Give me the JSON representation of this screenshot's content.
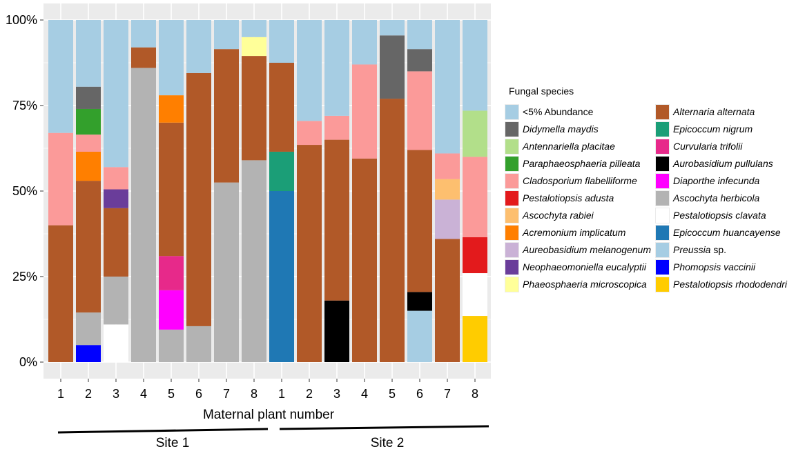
{
  "chart_data": {
    "type": "bar",
    "stacked": true,
    "xlabel": "Maternal plant number",
    "ylabel": "",
    "ylim": [
      0,
      100
    ],
    "yticks": [
      "0%",
      "25%",
      "50%",
      "75%",
      "100%"
    ],
    "ytick_values": [
      0,
      25,
      50,
      75,
      100
    ],
    "groups": [
      {
        "name": "Site 1",
        "categories": [
          "1",
          "2",
          "3",
          "4",
          "5",
          "6",
          "7",
          "8"
        ]
      },
      {
        "name": "Site 2",
        "categories": [
          "1",
          "2",
          "3",
          "4",
          "5",
          "6",
          "7",
          "8"
        ]
      }
    ],
    "legend_title": "Fungal species",
    "legend_placement": "right",
    "species": [
      {
        "key": "abund",
        "name": "<5% Abundance",
        "italic": false,
        "color": "#a6cde3"
      },
      {
        "key": "didy",
        "name": "Didymella maydis",
        "italic": true,
        "color": "#666666"
      },
      {
        "key": "anten",
        "name": "Antennariella placitae",
        "italic": true,
        "color": "#b2df8a"
      },
      {
        "key": "parap",
        "name": "Paraphaeosphaeria pilleata",
        "italic": true,
        "color": "#33a02c"
      },
      {
        "key": "clado",
        "name": "Cladosporium flabelliforme",
        "italic": true,
        "color": "#fb9a99"
      },
      {
        "key": "pestad",
        "name": "Pestalotiopsis adusta",
        "italic": true,
        "color": "#e31a1c"
      },
      {
        "key": "ascrab",
        "name": "Ascochyta rabiei",
        "italic": true,
        "color": "#fdbf6f"
      },
      {
        "key": "acrem",
        "name": "Acremonium implicatum",
        "italic": true,
        "color": "#ff7f00"
      },
      {
        "key": "aureo",
        "name": "Aureobasidium melanogenum",
        "italic": true,
        "color": "#cab2d6"
      },
      {
        "key": "neoph",
        "name": "Neophaeomoniella eucalyptii",
        "italic": true,
        "color": "#6a3d9a"
      },
      {
        "key": "phaeo",
        "name": "Phaeosphaeria microscopica",
        "italic": true,
        "color": "#ffff99"
      },
      {
        "key": "alter",
        "name": "Alternaria alternata",
        "italic": true,
        "color": "#b15928"
      },
      {
        "key": "epini",
        "name": "Epicoccum nigrum",
        "italic": true,
        "color": "#1b9e77"
      },
      {
        "key": "curv",
        "name": "Curvularia trifolii",
        "italic": true,
        "color": "#e7298a"
      },
      {
        "key": "aurpul",
        "name": "Aurobasidium pullulans",
        "italic": true,
        "color": "#000000"
      },
      {
        "key": "diap",
        "name": "Diaporthe infecunda",
        "italic": true,
        "color": "#ff00ff"
      },
      {
        "key": "aschb",
        "name": "Ascochyta herbicola",
        "italic": true,
        "color": "#b3b3b3"
      },
      {
        "key": "pestcl",
        "name": "Pestalotiopsis clavata",
        "italic": true,
        "color": "#ffffff"
      },
      {
        "key": "epihu",
        "name": "Epicoccum huancayense",
        "italic": true,
        "color": "#1f78b4"
      },
      {
        "key": "preus",
        "name": "Preussia sp.",
        "italic": false,
        "color": "#a6cde3"
      },
      {
        "key": "phomo",
        "name": "Phomopsis vaccinii",
        "italic": true,
        "color": "#0000ff"
      },
      {
        "key": "pestrh",
        "name": "Pestalotiopsis rhododendri",
        "italic": true,
        "color": "#ffcc00"
      }
    ],
    "bars": [
      {
        "site": "Site 1",
        "plant": "1",
        "segments": [
          [
            "alter",
            40
          ],
          [
            "clado",
            27
          ],
          [
            "abund",
            33
          ]
        ]
      },
      {
        "site": "Site 1",
        "plant": "2",
        "segments": [
          [
            "phomo",
            5
          ],
          [
            "aschb",
            9.5
          ],
          [
            "alter",
            38.5
          ],
          [
            "acrem",
            8.5
          ],
          [
            "clado",
            5
          ],
          [
            "parap",
            7.5
          ],
          [
            "didy",
            6.5
          ],
          [
            "abund",
            19.5
          ]
        ]
      },
      {
        "site": "Site 1",
        "plant": "3",
        "segments": [
          [
            "pestcl",
            11
          ],
          [
            "aschb",
            14
          ],
          [
            "alter",
            20
          ],
          [
            "neoph",
            5.5
          ],
          [
            "clado",
            6.5
          ],
          [
            "abund",
            43
          ]
        ]
      },
      {
        "site": "Site 1",
        "plant": "4",
        "segments": [
          [
            "aschb",
            86
          ],
          [
            "alter",
            6
          ],
          [
            "abund",
            8
          ]
        ]
      },
      {
        "site": "Site 1",
        "plant": "5",
        "segments": [
          [
            "aschb",
            9.5
          ],
          [
            "diap",
            11.5
          ],
          [
            "curv",
            10
          ],
          [
            "alter",
            39
          ],
          [
            "acrem",
            8
          ],
          [
            "abund",
            22
          ]
        ]
      },
      {
        "site": "Site 1",
        "plant": "6",
        "segments": [
          [
            "aschb",
            10.5
          ],
          [
            "alter",
            74
          ],
          [
            "abund",
            15.5
          ]
        ]
      },
      {
        "site": "Site 1",
        "plant": "7",
        "segments": [
          [
            "aschb",
            52.5
          ],
          [
            "alter",
            39
          ],
          [
            "abund",
            8.5
          ]
        ]
      },
      {
        "site": "Site 1",
        "plant": "8",
        "segments": [
          [
            "aschb",
            59
          ],
          [
            "alter",
            30.5
          ],
          [
            "phaeo",
            5.5
          ],
          [
            "abund",
            5
          ]
        ]
      },
      {
        "site": "Site 2",
        "plant": "1",
        "segments": [
          [
            "epihu",
            50
          ],
          [
            "epini",
            11.5
          ],
          [
            "alter",
            26
          ],
          [
            "abund",
            12.5
          ]
        ]
      },
      {
        "site": "Site 2",
        "plant": "2",
        "segments": [
          [
            "alter",
            63.5
          ],
          [
            "clado",
            7
          ],
          [
            "abund",
            29.5
          ]
        ]
      },
      {
        "site": "Site 2",
        "plant": "3",
        "segments": [
          [
            "aurpul",
            18
          ],
          [
            "alter",
            47
          ],
          [
            "clado",
            7
          ],
          [
            "abund",
            28
          ]
        ]
      },
      {
        "site": "Site 2",
        "plant": "4",
        "segments": [
          [
            "alter",
            59.5
          ],
          [
            "clado",
            27.5
          ],
          [
            "abund",
            13
          ]
        ]
      },
      {
        "site": "Site 2",
        "plant": "5",
        "segments": [
          [
            "alter",
            77
          ],
          [
            "didy",
            18.5
          ],
          [
            "abund",
            4.5
          ]
        ]
      },
      {
        "site": "Site 2",
        "plant": "6",
        "segments": [
          [
            "preus",
            15
          ],
          [
            "aurpul",
            5.5
          ],
          [
            "alter",
            41.5
          ],
          [
            "clado",
            23
          ],
          [
            "didy",
            6.5
          ],
          [
            "abund",
            8.5
          ]
        ]
      },
      {
        "site": "Site 2",
        "plant": "7",
        "segments": [
          [
            "alter",
            36
          ],
          [
            "aureo",
            11.5
          ],
          [
            "ascrab",
            6
          ],
          [
            "clado",
            7.5
          ],
          [
            "abund",
            39
          ]
        ]
      },
      {
        "site": "Site 2",
        "plant": "8",
        "segments": [
          [
            "pestrh",
            13.5
          ],
          [
            "pestcl",
            12.5
          ],
          [
            "pestad",
            10.5
          ],
          [
            "clado",
            23.5
          ],
          [
            "anten",
            13.5
          ],
          [
            "abund",
            26.5
          ]
        ]
      }
    ]
  }
}
